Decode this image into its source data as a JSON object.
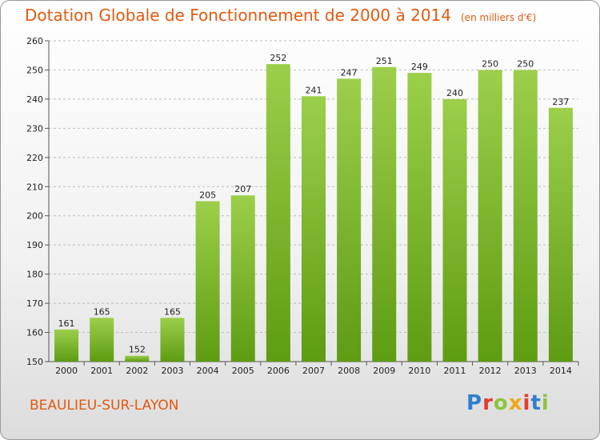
{
  "header": {
    "title": "Dotation Globale de Fonctionnement de 2000 à 2014",
    "unit": "(en milliers d'€)"
  },
  "footer": {
    "commune": "BEAULIEU-SUR-LAYON",
    "logo_text": "Proxiti"
  },
  "colors": {
    "bar_top": "#9ccf4a",
    "bar_bottom": "#5e9c12",
    "title": "#e05a10"
  },
  "chart_data": {
    "type": "bar",
    "title": "Dotation Globale de Fonctionnement de 2000 à 2014",
    "subtitle": "(en milliers d'€)",
    "categories": [
      "2000",
      "2001",
      "2002",
      "2003",
      "2004",
      "2005",
      "2006",
      "2007",
      "2008",
      "2009",
      "2010",
      "2011",
      "2012",
      "2013",
      "2014"
    ],
    "values": [
      161,
      165,
      152,
      165,
      205,
      207,
      252,
      241,
      247,
      251,
      249,
      240,
      250,
      250,
      237
    ],
    "ylim": [
      150,
      260
    ],
    "yticks": [
      150,
      160,
      170,
      180,
      190,
      200,
      210,
      220,
      230,
      240,
      250,
      260
    ],
    "grid": true
  }
}
